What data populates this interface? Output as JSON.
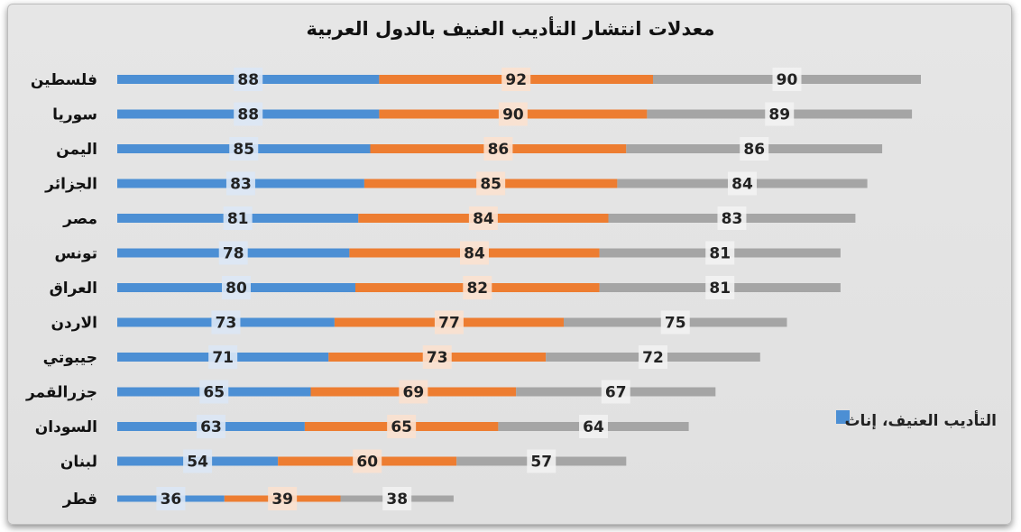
{
  "chart_data": {
    "type": "bar",
    "orientation": "horizontal",
    "stacked": true,
    "title": "معدلات انتشار التأديب العنيف بالدول العربية",
    "categories": [
      "فلسطين",
      "سوريا",
      "اليمن",
      "الجزائر",
      "مصر",
      "تونس",
      "العراق",
      "الاردن",
      "جيبوتي",
      "جزرالقمر",
      "السودان",
      "لبنان",
      "قطر"
    ],
    "series": [
      {
        "name": "التأديب العنيف، إناث",
        "color": "#4c8fd4",
        "values": [
          88,
          88,
          85,
          83,
          81,
          78,
          80,
          73,
          71,
          65,
          63,
          54,
          36
        ]
      },
      {
        "color": "#ed7d31",
        "values": [
          92,
          90,
          86,
          85,
          84,
          84,
          82,
          77,
          73,
          69,
          65,
          60,
          39
        ]
      },
      {
        "color": "#a5a5a5",
        "values": [
          90,
          89,
          86,
          84,
          83,
          81,
          81,
          75,
          72,
          67,
          64,
          57,
          38
        ]
      }
    ],
    "legend_position": "right",
    "grid": false
  }
}
